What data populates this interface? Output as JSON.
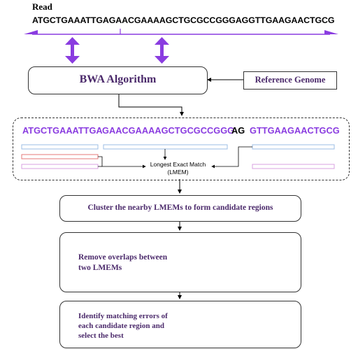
{
  "read": {
    "title": "Read",
    "sequence": "ATGCTGAAATTGAGAACGAAAAGCTGCGCCGGGAGGTTGAAGAACTGCG"
  },
  "bwa_box": {
    "label": "BWA Algorithm"
  },
  "reference_box": {
    "label": "Reference Genome"
  },
  "lmem_panel": {
    "segments": [
      "ATGCTGAAATTGA",
      "GAACGAAAAGCTGCGCCGGG",
      "AG",
      "GTTGAAGAACTGCG"
    ],
    "label_line1": "Longest Exact Match",
    "label_line2": "(LMEM)"
  },
  "steps": {
    "cluster": "Cluster the nearby LMEMs to form candidate regions",
    "overlap": "Remove overlaps between two LMEMs",
    "errors": "Identify matching errors of each candidate region and select the best"
  },
  "colors": {
    "purple": "#8a3ce0",
    "title_purple": "#4b2a6b",
    "blue_bar": "#9bbce6",
    "red_bar": "#e47a7a",
    "pink_bar": "#d9a0e0"
  }
}
